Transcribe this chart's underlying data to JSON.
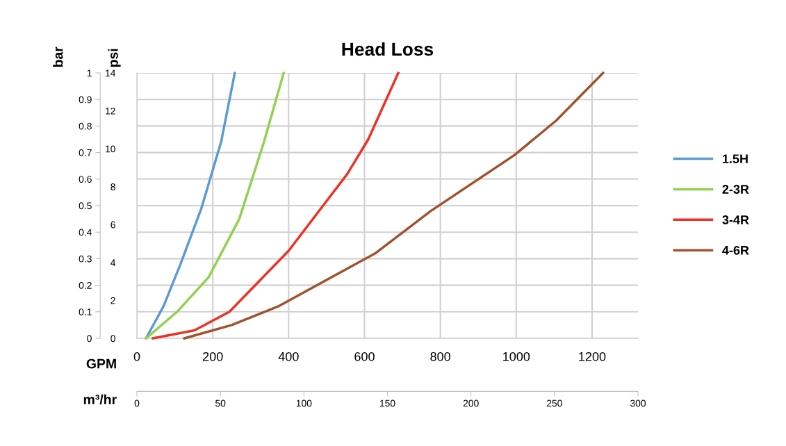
{
  "chart_data": {
    "type": "line",
    "title": "Head Loss",
    "xlabel": "GPM",
    "x2label": "m³/hr",
    "ylabel": "bar",
    "y2label": "psi",
    "xlim": [
      0,
      1321
    ],
    "xticks": [
      0,
      200,
      400,
      600,
      800,
      1000,
      1200
    ],
    "x2lim": [
      0,
      300
    ],
    "x2ticks": [
      0,
      50,
      100,
      150,
      200,
      250,
      300
    ],
    "ylim": [
      0,
      1
    ],
    "yticks": [
      0,
      0.1,
      0.2,
      0.3,
      0.4,
      0.5,
      0.6,
      0.7,
      0.8,
      0.9,
      1
    ],
    "y2lim": [
      0,
      14
    ],
    "y2ticks": [
      0,
      2,
      4,
      6,
      8,
      10,
      12,
      14
    ],
    "grid": true,
    "legend": "right",
    "marker": "none",
    "line_style": "solid",
    "series": [
      {
        "name": "1.5H",
        "color": "#5b9bd5",
        "x": [
          24,
          70,
          115,
          170,
          222,
          258
        ],
        "values": [
          0,
          0.12,
          0.28,
          0.49,
          0.74,
          1
        ]
      },
      {
        "name": "2-3R",
        "color": "#92d050",
        "x": [
          24,
          106,
          189,
          270,
          335,
          387
        ],
        "values": [
          0,
          0.1,
          0.23,
          0.45,
          0.74,
          1
        ]
      },
      {
        "name": "3-4R",
        "color": "#ee3124",
        "x": [
          42,
          152,
          244,
          400,
          555,
          610,
          689
        ],
        "values": [
          0,
          0.03,
          0.1,
          0.33,
          0.62,
          0.75,
          1
        ]
      },
      {
        "name": "4-6R",
        "color": "#a0522d",
        "x": [
          125,
          250,
          372,
          628,
          775,
          995,
          1105,
          1229
        ],
        "values": [
          0,
          0.05,
          0.12,
          0.32,
          0.48,
          0.69,
          0.82,
          1
        ]
      }
    ]
  }
}
